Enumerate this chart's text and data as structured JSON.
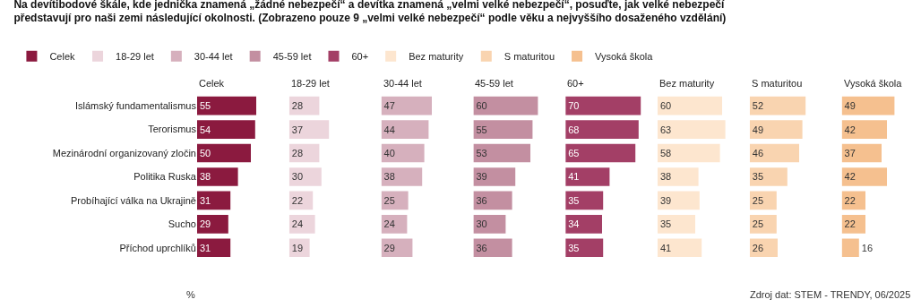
{
  "chart_data": [
    {
      "type": "bar",
      "orientation": "horizontal",
      "title": "Na devítibodové škále, kde jednička znamená „žádné nebezpečí“ a devítka znamená „velmi velké nebezpečí“, posuďte, jak velké nebezpečí představují pro naši zemi následující okolnosti. (Zobrazeno pouze 9 „velmi velké nebezpečí“ podle věku a nejvyššího dosaženého vzdělání)",
      "subtitle": "Celek",
      "categories": [
        "Islámský fundamentalismus",
        "Terorismus",
        "Mezinárodní organizovaný zločin",
        "Politika Ruska",
        "Probíhající válka na Ukrajině",
        "Sucho",
        "Příchod uprchlíků"
      ],
      "series": [
        {
          "name": "Celek",
          "color": "#8b1a3f",
          "values": [
            55,
            54,
            50,
            38,
            31,
            29,
            31
          ]
        }
      ],
      "data_labels": true,
      "legend": "top left",
      "tick_labels": "y",
      "annotations": [
        "%"
      ]
    },
    {
      "type": "bar",
      "orientation": "horizontal",
      "subtitle": "18-29 let",
      "series": [
        {
          "name": "18-29 let",
          "color": "#ecd5dc",
          "values": [
            28,
            37,
            28,
            30,
            22,
            24,
            19
          ]
        }
      ],
      "data_labels": true,
      "legend": "top left",
      "tick_labels": false
    },
    {
      "type": "bar",
      "orientation": "horizontal",
      "subtitle": "30-44 let",
      "series": [
        {
          "name": "30-44 let",
          "color": "#d6b0bd",
          "values": [
            47,
            44,
            40,
            38,
            25,
            24,
            29
          ]
        }
      ],
      "data_labels": true,
      "legend": "top left",
      "tick_labels": false
    },
    {
      "type": "bar",
      "orientation": "horizontal",
      "subtitle": "45-59 let",
      "series": [
        {
          "name": "45-59 let",
          "color": "#c38fa1",
          "values": [
            60,
            55,
            53,
            39,
            36,
            30,
            36
          ]
        }
      ],
      "data_labels": true,
      "legend": "top left",
      "tick_labels": false
    },
    {
      "type": "bar",
      "orientation": "horizontal",
      "subtitle": "60+",
      "series": [
        {
          "name": "60+",
          "color": "#a33f66",
          "values": [
            70,
            68,
            65,
            41,
            35,
            34,
            35
          ]
        }
      ],
      "data_labels": true,
      "legend": "top left",
      "tick_labels": false
    },
    {
      "type": "bar",
      "orientation": "horizontal",
      "subtitle": "Bez maturity",
      "series": [
        {
          "name": "Bez maturity",
          "color": "#fde6cf",
          "values": [
            60,
            63,
            58,
            38,
            39,
            35,
            41
          ]
        }
      ],
      "data_labels": true,
      "legend": "top left",
      "tick_labels": false
    },
    {
      "type": "bar",
      "orientation": "horizontal",
      "subtitle": "S maturitou",
      "series": [
        {
          "name": "S maturitou",
          "color": "#f9d4b0",
          "values": [
            52,
            49,
            46,
            35,
            25,
            25,
            26
          ]
        }
      ],
      "data_labels": true,
      "legend": "top left",
      "tick_labels": false
    },
    {
      "type": "bar",
      "orientation": "horizontal",
      "subtitle": "Vysoká škola",
      "series": [
        {
          "name": "Vysoká škola",
          "color": "#f5c08f",
          "values": [
            49,
            42,
            37,
            42,
            22,
            22,
            16
          ]
        }
      ],
      "data_labels": true,
      "legend": "top left",
      "tick_labels": false,
      "annotations": [
        "Zdroj dat: STEM - TRENDY, 06/2025"
      ]
    }
  ]
}
